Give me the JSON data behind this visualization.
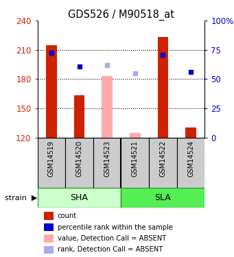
{
  "title": "GDS526 / M90518_at",
  "categories": [
    "GSM14519",
    "GSM14520",
    "GSM14523",
    "GSM14521",
    "GSM14522",
    "GSM14524"
  ],
  "ylim_left": [
    120,
    240
  ],
  "ylim_right": [
    0,
    100
  ],
  "yticks_left": [
    120,
    150,
    180,
    210,
    240
  ],
  "yticks_right": [
    0,
    25,
    50,
    75,
    100
  ],
  "bar_values": [
    215,
    163,
    null,
    null,
    223,
    130
  ],
  "bar_absent_values": [
    null,
    null,
    183,
    125,
    null,
    null
  ],
  "rank_values": [
    207,
    193,
    null,
    null,
    205,
    187
  ],
  "rank_absent_values": [
    null,
    null,
    194,
    186,
    null,
    null
  ],
  "bar_color": "#cc2200",
  "bar_absent_color": "#ffaaaa",
  "rank_color": "#0000cc",
  "rank_absent_color": "#aaaaee",
  "bar_width": 0.38,
  "baseline": 120,
  "bg_color": "#ffffff",
  "label_bg_color": "#cccccc",
  "sha_color": "#ccffcc",
  "sla_color": "#55ee55",
  "group_border_color": "#339933",
  "tick_label_color_left": "#cc2200",
  "tick_label_color_right": "#0000bb",
  "legend_items": [
    {
      "color": "#cc2200",
      "label": "count"
    },
    {
      "color": "#0000cc",
      "label": "percentile rank within the sample"
    },
    {
      "color": "#ffaaaa",
      "label": "value, Detection Call = ABSENT"
    },
    {
      "color": "#aaaaee",
      "label": "rank, Detection Call = ABSENT"
    }
  ]
}
